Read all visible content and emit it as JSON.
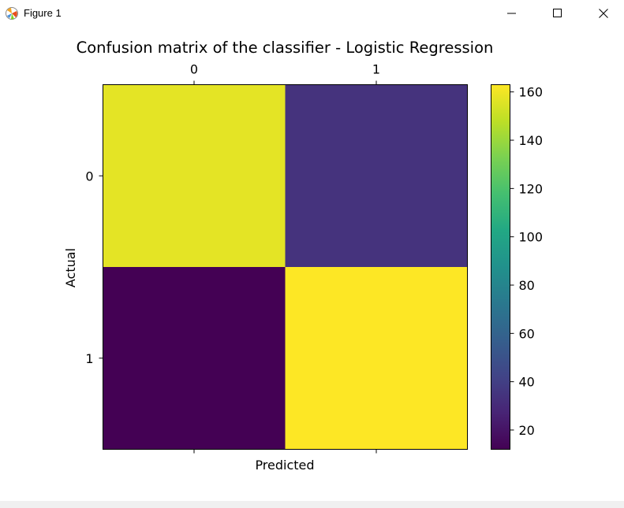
{
  "window": {
    "title": "Figure 1",
    "controls": {
      "minimize": "minimize",
      "maximize": "maximize",
      "close": "close"
    }
  },
  "chart_data": {
    "type": "heatmap",
    "title": "Confusion matrix of the classifier - Logistic Regression",
    "xlabel": "Predicted",
    "ylabel": "Actual",
    "x_categories": [
      "0",
      "1"
    ],
    "y_categories": [
      "0",
      "1"
    ],
    "x_axis_position": "top",
    "values": [
      [
        157,
        34
      ],
      [
        12,
        163
      ]
    ],
    "colormap": "viridis",
    "colorbar": {
      "vmin": 12,
      "vmax": 163,
      "ticks": [
        20,
        40,
        60,
        80,
        100,
        120,
        140,
        160
      ],
      "position": "right"
    },
    "grid": false
  }
}
